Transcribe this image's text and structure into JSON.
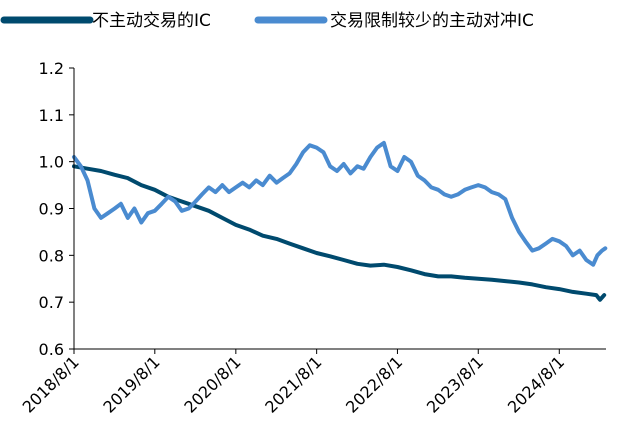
{
  "chart_data": {
    "type": "line",
    "title": "",
    "xlabel": "",
    "ylabel": "",
    "ylim": [
      0.6,
      1.2
    ],
    "y_ticks": [
      0.6,
      0.7,
      0.8,
      0.9,
      1.0,
      1.1,
      1.2
    ],
    "y_tick_labels": [
      "0.6",
      "0.7",
      "0.8",
      "0.9",
      "1.0",
      "1.1",
      "1.2"
    ],
    "x_tick_labels": [
      "2018/8/1",
      "2019/8/1",
      "2020/8/1",
      "2021/8/1",
      "2022/8/1",
      "2023/8/1",
      "2024/8/1"
    ],
    "x_tick_values": [
      "2018-08-01",
      "2019-08-01",
      "2020-08-01",
      "2021-08-01",
      "2022-08-01",
      "2023-08-01",
      "2024-08-01"
    ],
    "xlim": [
      "2018-08-01",
      "2025-02-28"
    ],
    "grid": false,
    "legend_position": "top",
    "series": [
      {
        "name": "不主动交易的IC",
        "color": "#004a6e",
        "points": [
          [
            "2018-08-01",
            0.99
          ],
          [
            "2018-10-01",
            0.985
          ],
          [
            "2018-12-01",
            0.98
          ],
          [
            "2019-02-01",
            0.972
          ],
          [
            "2019-04-01",
            0.965
          ],
          [
            "2019-06-01",
            0.95
          ],
          [
            "2019-08-01",
            0.94
          ],
          [
            "2019-10-01",
            0.925
          ],
          [
            "2019-12-01",
            0.915
          ],
          [
            "2020-02-01",
            0.905
          ],
          [
            "2020-04-01",
            0.895
          ],
          [
            "2020-06-01",
            0.88
          ],
          [
            "2020-08-01",
            0.865
          ],
          [
            "2020-10-01",
            0.855
          ],
          [
            "2020-12-01",
            0.842
          ],
          [
            "2021-02-01",
            0.835
          ],
          [
            "2021-04-01",
            0.825
          ],
          [
            "2021-06-01",
            0.815
          ],
          [
            "2021-08-01",
            0.805
          ],
          [
            "2021-10-01",
            0.798
          ],
          [
            "2021-12-01",
            0.79
          ],
          [
            "2022-02-01",
            0.782
          ],
          [
            "2022-04-01",
            0.778
          ],
          [
            "2022-06-01",
            0.78
          ],
          [
            "2022-08-01",
            0.775
          ],
          [
            "2022-10-01",
            0.768
          ],
          [
            "2022-12-01",
            0.76
          ],
          [
            "2023-02-01",
            0.755
          ],
          [
            "2023-04-01",
            0.755
          ],
          [
            "2023-06-01",
            0.752
          ],
          [
            "2023-08-01",
            0.75
          ],
          [
            "2023-10-01",
            0.748
          ],
          [
            "2023-12-01",
            0.745
          ],
          [
            "2024-02-01",
            0.742
          ],
          [
            "2024-04-01",
            0.738
          ],
          [
            "2024-06-01",
            0.732
          ],
          [
            "2024-08-01",
            0.728
          ],
          [
            "2024-10-01",
            0.722
          ],
          [
            "2024-12-01",
            0.718
          ],
          [
            "2025-01-15",
            0.715
          ],
          [
            "2025-02-01",
            0.705
          ],
          [
            "2025-02-20",
            0.715
          ]
        ]
      },
      {
        "name": "交易限制较少的主动对冲IC",
        "color": "#4a8bd0",
        "points": [
          [
            "2018-08-01",
            1.01
          ],
          [
            "2018-09-01",
            0.99
          ],
          [
            "2018-10-01",
            0.96
          ],
          [
            "2018-11-01",
            0.9
          ],
          [
            "2018-12-01",
            0.88
          ],
          [
            "2019-01-01",
            0.89
          ],
          [
            "2019-02-01",
            0.9
          ],
          [
            "2019-03-01",
            0.91
          ],
          [
            "2019-04-01",
            0.88
          ],
          [
            "2019-05-01",
            0.9
          ],
          [
            "2019-06-01",
            0.87
          ],
          [
            "2019-07-01",
            0.89
          ],
          [
            "2019-08-01",
            0.895
          ],
          [
            "2019-09-01",
            0.91
          ],
          [
            "2019-10-01",
            0.925
          ],
          [
            "2019-11-01",
            0.915
          ],
          [
            "2019-12-01",
            0.895
          ],
          [
            "2020-01-01",
            0.9
          ],
          [
            "2020-02-01",
            0.915
          ],
          [
            "2020-03-01",
            0.93
          ],
          [
            "2020-04-01",
            0.945
          ],
          [
            "2020-05-01",
            0.935
          ],
          [
            "2020-06-01",
            0.95
          ],
          [
            "2020-07-01",
            0.935
          ],
          [
            "2020-08-01",
            0.945
          ],
          [
            "2020-09-01",
            0.955
          ],
          [
            "2020-10-01",
            0.945
          ],
          [
            "2020-11-01",
            0.96
          ],
          [
            "2020-12-01",
            0.95
          ],
          [
            "2021-01-01",
            0.97
          ],
          [
            "2021-02-01",
            0.955
          ],
          [
            "2021-03-01",
            0.965
          ],
          [
            "2021-04-01",
            0.975
          ],
          [
            "2021-05-01",
            0.995
          ],
          [
            "2021-06-01",
            1.02
          ],
          [
            "2021-07-01",
            1.035
          ],
          [
            "2021-08-01",
            1.03
          ],
          [
            "2021-09-01",
            1.02
          ],
          [
            "2021-10-01",
            0.99
          ],
          [
            "2021-11-01",
            0.98
          ],
          [
            "2021-12-01",
            0.995
          ],
          [
            "2022-01-01",
            0.975
          ],
          [
            "2022-02-01",
            0.99
          ],
          [
            "2022-03-01",
            0.985
          ],
          [
            "2022-04-01",
            1.01
          ],
          [
            "2022-05-01",
            1.03
          ],
          [
            "2022-06-01",
            1.04
          ],
          [
            "2022-07-01",
            0.99
          ],
          [
            "2022-08-01",
            0.98
          ],
          [
            "2022-09-01",
            1.01
          ],
          [
            "2022-10-01",
            1.0
          ],
          [
            "2022-11-01",
            0.97
          ],
          [
            "2022-12-01",
            0.96
          ],
          [
            "2023-01-01",
            0.945
          ],
          [
            "2023-02-01",
            0.94
          ],
          [
            "2023-03-01",
            0.93
          ],
          [
            "2023-04-01",
            0.925
          ],
          [
            "2023-05-01",
            0.93
          ],
          [
            "2023-06-01",
            0.94
          ],
          [
            "2023-07-01",
            0.945
          ],
          [
            "2023-08-01",
            0.95
          ],
          [
            "2023-09-01",
            0.945
          ],
          [
            "2023-10-01",
            0.935
          ],
          [
            "2023-11-01",
            0.93
          ],
          [
            "2023-12-01",
            0.92
          ],
          [
            "2024-01-01",
            0.88
          ],
          [
            "2024-02-01",
            0.85
          ],
          [
            "2024-03-01",
            0.83
          ],
          [
            "2024-04-01",
            0.81
          ],
          [
            "2024-05-01",
            0.815
          ],
          [
            "2024-06-01",
            0.825
          ],
          [
            "2024-07-01",
            0.835
          ],
          [
            "2024-08-01",
            0.83
          ],
          [
            "2024-09-01",
            0.82
          ],
          [
            "2024-10-01",
            0.8
          ],
          [
            "2024-11-01",
            0.81
          ],
          [
            "2024-12-01",
            0.79
          ],
          [
            "2025-01-01",
            0.78
          ],
          [
            "2025-01-20",
            0.8
          ],
          [
            "2025-02-10",
            0.81
          ],
          [
            "2025-02-25",
            0.815
          ]
        ]
      }
    ]
  }
}
